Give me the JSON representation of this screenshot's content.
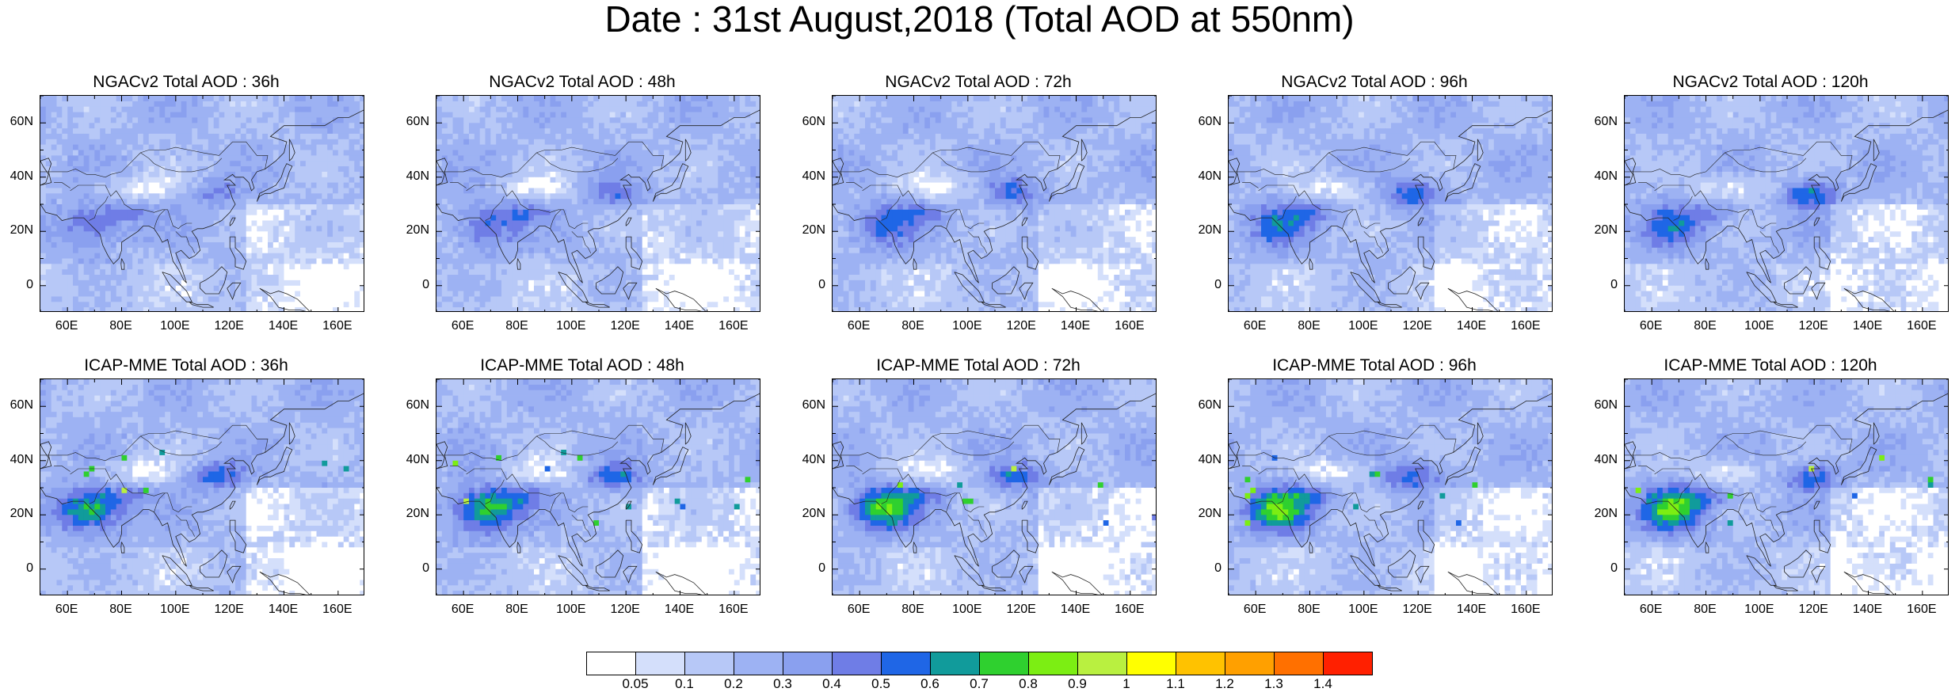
{
  "title": "Date : 31st August,2018 (Total AOD at 550nm)",
  "panels": [
    {
      "title": "NGACv2 Total AOD : 36h",
      "model": "NGACv2",
      "lead": 36
    },
    {
      "title": "NGACv2 Total AOD : 48h",
      "model": "NGACv2",
      "lead": 48
    },
    {
      "title": "NGACv2 Total AOD : 72h",
      "model": "NGACv2",
      "lead": 72
    },
    {
      "title": "NGACv2 Total AOD : 96h",
      "model": "NGACv2",
      "lead": 96
    },
    {
      "title": "NGACv2 Total AOD : 120h",
      "model": "NGACv2",
      "lead": 120
    },
    {
      "title": "ICAP-MME Total AOD : 36h",
      "model": "ICAP-MME",
      "lead": 36
    },
    {
      "title": "ICAP-MME Total AOD : 48h",
      "model": "ICAP-MME",
      "lead": 48
    },
    {
      "title": "ICAP-MME Total AOD : 72h",
      "model": "ICAP-MME",
      "lead": 72
    },
    {
      "title": "ICAP-MME Total AOD : 96h",
      "model": "ICAP-MME",
      "lead": 96
    },
    {
      "title": "ICAP-MME Total AOD : 120h",
      "model": "ICAP-MME",
      "lead": 120
    }
  ],
  "lat_ticks": [
    "60N",
    "40N",
    "20N",
    "0"
  ],
  "lon_ticks": [
    "60E",
    "80E",
    "100E",
    "120E",
    "140E",
    "160E"
  ],
  "colorbar": {
    "labels": [
      "0.05",
      "0.1",
      "0.2",
      "0.3",
      "0.4",
      "0.5",
      "0.6",
      "0.7",
      "0.8",
      "0.9",
      "1",
      "1.1",
      "1.2",
      "1.3",
      "1.4"
    ],
    "colors": [
      "#ffffff",
      "#d4dffb",
      "#b7c8f7",
      "#9db2f3",
      "#8aa0ef",
      "#6f7de6",
      "#1f66e6",
      "#119b9b",
      "#2fd02f",
      "#7cee13",
      "#b9f040",
      "#ffff00",
      "#ffc200",
      "#ffa000",
      "#ff7000",
      "#ff2000"
    ]
  },
  "map_extent": {
    "lon_min": 50,
    "lon_max": 170,
    "lat_min": -10,
    "lat_max": 70
  }
}
